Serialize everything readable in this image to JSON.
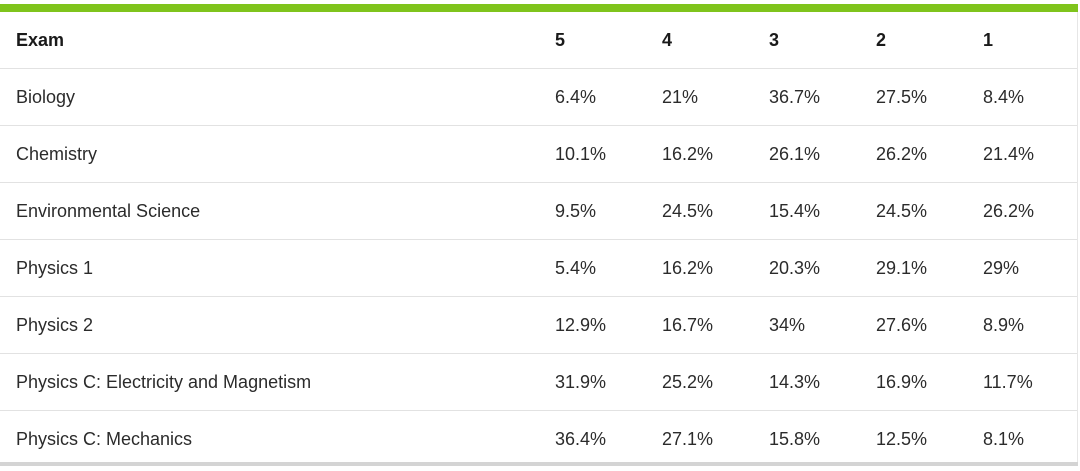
{
  "colors": {
    "accent": "#7fc41c",
    "row_divider": "#e2e2e2",
    "bottom_rule": "#d4d4d4"
  },
  "table": {
    "headers": [
      "Exam",
      "5",
      "4",
      "3",
      "2",
      "1"
    ],
    "rows": [
      [
        "Biology",
        "6.4%",
        "21%",
        "36.7%",
        "27.5%",
        "8.4%"
      ],
      [
        "Chemistry",
        "10.1%",
        "16.2%",
        "26.1%",
        "26.2%",
        "21.4%"
      ],
      [
        "Environmental Science",
        "9.5%",
        "24.5%",
        "15.4%",
        "24.5%",
        "26.2%"
      ],
      [
        "Physics 1",
        "5.4%",
        "16.2%",
        "20.3%",
        "29.1%",
        "29%"
      ],
      [
        "Physics 2",
        "12.9%",
        "16.7%",
        "34%",
        "27.6%",
        "8.9%"
      ],
      [
        "Physics C: Electricity and Magnetism",
        "31.9%",
        "25.2%",
        "14.3%",
        "16.9%",
        "11.7%"
      ],
      [
        "Physics C: Mechanics",
        "36.4%",
        "27.1%",
        "15.8%",
        "12.5%",
        "8.1%"
      ]
    ]
  }
}
